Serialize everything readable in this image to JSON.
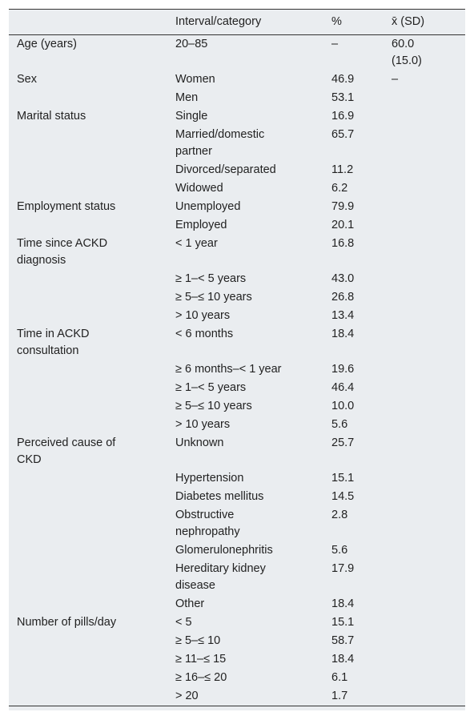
{
  "table": {
    "header": [
      "Interval/category",
      "%",
      "x̄ (SD)"
    ],
    "rows": [
      {
        "variable": "Age (years)",
        "category": "20–85",
        "percent": "–",
        "mean_sd": "60.0 (15.0)"
      },
      {
        "variable": "Sex",
        "category": "Women",
        "percent": "46.9",
        "mean_sd": "–"
      },
      {
        "category": "Men",
        "percent": "53.1"
      },
      {
        "variable": "Marital status",
        "category": "Single",
        "percent": "16.9"
      },
      {
        "category": "Married/domestic partner",
        "percent": "65.7"
      },
      {
        "category": "Divorced/separated",
        "percent": "11.2"
      },
      {
        "category": "Widowed",
        "percent": "6.2"
      },
      {
        "variable": "Employment status",
        "category": "Unemployed",
        "percent": "79.9"
      },
      {
        "category": "Employed",
        "percent": "20.1"
      },
      {
        "variable": "Time since ACKD diagnosis",
        "category": "< 1 year",
        "percent": "16.8"
      },
      {
        "category": "≥ 1–< 5 years",
        "percent": "43.0"
      },
      {
        "category": "≥ 5–≤ 10 years",
        "percent": "26.8"
      },
      {
        "category": "> 10 years",
        "percent": "13.4"
      },
      {
        "variable": "Time in ACKD consultation",
        "category": "< 6 months",
        "percent": "18.4"
      },
      {
        "category": "≥ 6 months–< 1 year",
        "percent": "19.6"
      },
      {
        "category": "≥ 1–< 5 years",
        "percent": "46.4"
      },
      {
        "category": "≥ 5–≤ 10 years",
        "percent": "10.0"
      },
      {
        "category": "> 10 years",
        "percent": "5.6"
      },
      {
        "variable": "Perceived cause of CKD",
        "category": "Unknown",
        "percent": "25.7"
      },
      {
        "category": "Hypertension",
        "percent": "15.1"
      },
      {
        "category": "Diabetes mellitus",
        "percent": "14.5"
      },
      {
        "category": "Obstructive nephropathy",
        "percent": "2.8"
      },
      {
        "category": "Glomerulonephritis",
        "percent": "5.6"
      },
      {
        "category": "Hereditary kidney disease",
        "percent": "17.9"
      },
      {
        "category": "Other",
        "percent": "18.4"
      },
      {
        "variable": "Number of pills/day",
        "category": "< 5",
        "percent": "15.1"
      },
      {
        "category": "≥ 5–≤ 10",
        "percent": "58.7"
      },
      {
        "category": "≥ 11–≤ 15",
        "percent": "18.4"
      },
      {
        "category": "≥ 16–≤ 20",
        "percent": "6.1"
      },
      {
        "category": "> 20",
        "percent": "1.7"
      }
    ]
  }
}
